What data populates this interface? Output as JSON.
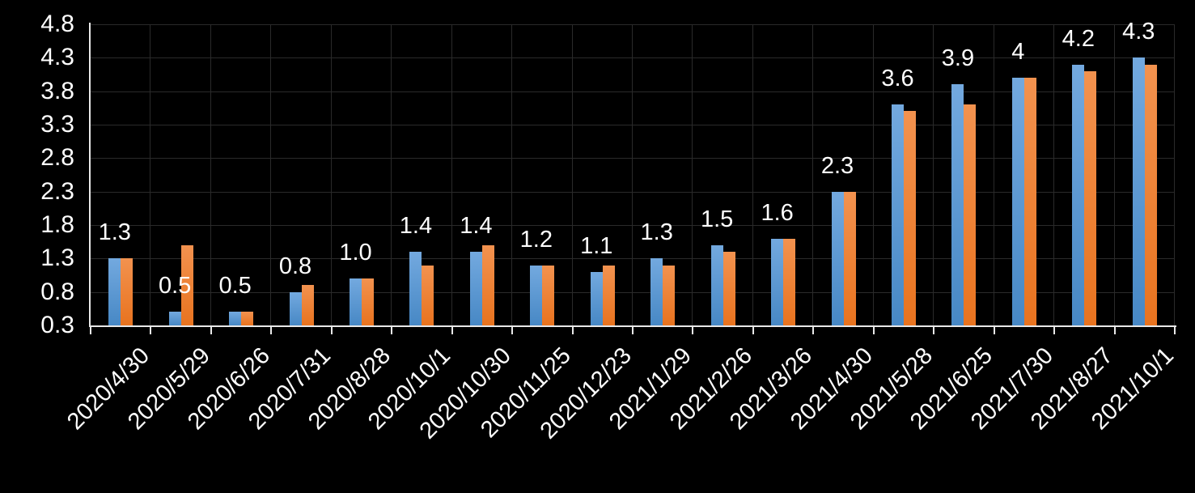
{
  "chart_data": {
    "type": "bar",
    "title": "",
    "legend": "none",
    "background": "#000000",
    "text_color": "#ffffff",
    "axis_color": "#e8e8e8",
    "gridline_color": "#2a2a2a",
    "grid": {
      "horizontal": true,
      "vertical": true
    },
    "categories": [
      "2020/4/30",
      "2020/5/29",
      "2020/6/26",
      "2020/7/31",
      "2020/8/28",
      "2020/10/1",
      "2020/10/30",
      "2020/11/25",
      "2020/12/23",
      "2021/1/29",
      "2021/2/26",
      "2021/3/26",
      "2021/4/30",
      "2021/5/28",
      "2021/6/25",
      "2021/7/30",
      "2021/8/27",
      "2021/10/1"
    ],
    "series": [
      {
        "name": "series-blue",
        "color": "#5b9bd5",
        "values": [
          1.3,
          0.5,
          0.5,
          0.8,
          1.0,
          1.4,
          1.4,
          1.2,
          1.1,
          1.3,
          1.5,
          1.6,
          2.3,
          3.6,
          3.9,
          4.0,
          4.2,
          4.3
        ],
        "data_labels": [
          "1.3",
          "0.5",
          "0.5",
          "0.8",
          "1.0",
          "1.4",
          "1.4",
          "1.2",
          "1.1",
          "1.3",
          "1.5",
          "1.6",
          "2.3",
          "3.6",
          "3.9",
          "4",
          "4.2",
          "4.3"
        ]
      },
      {
        "name": "series-orange",
        "color": "#ed7d31",
        "values": [
          1.3,
          1.5,
          0.5,
          0.9,
          1.0,
          1.2,
          1.5,
          1.2,
          1.2,
          1.2,
          1.4,
          1.6,
          2.3,
          3.5,
          3.6,
          4.0,
          4.1,
          4.2
        ]
      }
    ],
    "y_axis": {
      "min": 0.3,
      "max": 4.8,
      "step": 0.5,
      "tick_labels": [
        "4.8",
        "4.3",
        "3.8",
        "3.3",
        "2.8",
        "2.3",
        "1.8",
        "1.3",
        "0.8",
        "0.3"
      ]
    }
  }
}
